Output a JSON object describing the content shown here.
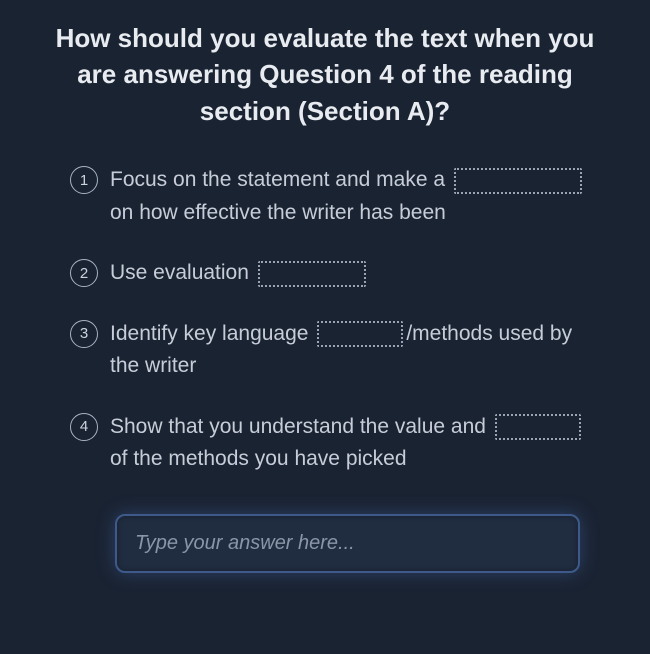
{
  "title": "How should you evaluate the text when you are answering Question 4 of the reading section (Section A)?",
  "items": [
    {
      "num": "1",
      "pre": "Focus on the statement and make a ",
      "post": " on how effective the writer has been",
      "blankClass": "blank-w1"
    },
    {
      "num": "2",
      "pre": "Use evaluation ",
      "post": "",
      "blankClass": "blank-w2"
    },
    {
      "num": "3",
      "pre": "Identify key language ",
      "post": "/methods used by the writer",
      "blankClass": "blank-w3"
    },
    {
      "num": "4",
      "pre": "Show that you understand the value and ",
      "post": " of the methods you have picked",
      "blankClass": "blank-w4"
    }
  ],
  "answer": {
    "placeholder": "Type your answer here..."
  },
  "colors": {
    "background": "#1a2332",
    "title": "#e8ebf0",
    "text": "#c7cdd8",
    "badgeBorder": "#a9b2c3",
    "blankBorder": "#9aa4b5",
    "inputBg": "#202d40",
    "inputBorder": "#3d5a8a",
    "inputGlow": "rgba(80,120,200,0.35)"
  }
}
